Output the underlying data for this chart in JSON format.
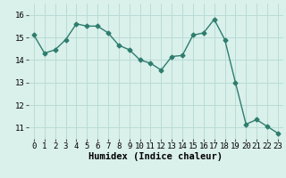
{
  "x": [
    0,
    1,
    2,
    3,
    4,
    5,
    6,
    7,
    8,
    9,
    10,
    11,
    12,
    13,
    14,
    15,
    16,
    17,
    18,
    19,
    20,
    21,
    22,
    23
  ],
  "y": [
    15.1,
    14.3,
    14.45,
    14.9,
    15.6,
    15.5,
    15.5,
    15.2,
    14.65,
    14.45,
    14.0,
    13.85,
    13.55,
    14.15,
    14.2,
    15.1,
    15.2,
    15.8,
    14.9,
    13.0,
    11.15,
    11.35,
    11.05,
    10.75
  ],
  "line_color": "#2e7d6e",
  "marker": "D",
  "marker_size": 2.5,
  "bg_color": "#daf0eb",
  "grid_color": "#b8dcd6",
  "xlabel": "Humidex (Indice chaleur)",
  "ylim": [
    10.5,
    16.5
  ],
  "xlim": [
    -0.5,
    23.5
  ],
  "yticks": [
    11,
    12,
    13,
    14,
    15,
    16
  ],
  "xticks": [
    0,
    1,
    2,
    3,
    4,
    5,
    6,
    7,
    8,
    9,
    10,
    11,
    12,
    13,
    14,
    15,
    16,
    17,
    18,
    19,
    20,
    21,
    22,
    23
  ],
  "xlabel_fontsize": 7.5,
  "tick_fontsize": 6.5,
  "line_width": 1.0
}
